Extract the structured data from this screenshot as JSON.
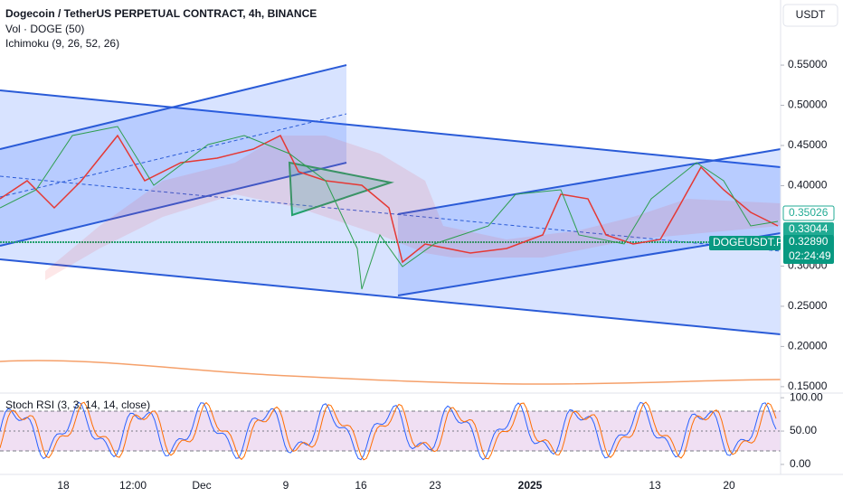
{
  "header": {
    "title": "Dogecoin / TetherUS PERPETUAL CONTRACT, 4h, BINANCE",
    "indicators": [
      "Vol · DOGE (50)",
      "Ichimoku (9, 26, 52, 26)"
    ]
  },
  "currency": "USDT",
  "price_axis": {
    "ylim": [
      0.142,
      0.631
    ],
    "yticks": [
      {
        "value": 0.55,
        "label": "0.55000"
      },
      {
        "value": 0.5,
        "label": "0.50000"
      },
      {
        "value": 0.45,
        "label": "0.45000"
      },
      {
        "value": 0.4,
        "label": "0.40000"
      },
      {
        "value": 0.3,
        "label": "0.30000"
      },
      {
        "value": 0.25,
        "label": "0.25000"
      },
      {
        "value": 0.2,
        "label": "0.20000"
      },
      {
        "value": 0.15,
        "label": "0.15000"
      }
    ]
  },
  "price_tags": {
    "high": "0.35026",
    "last": "0.33044",
    "symbol": "DOGEUSDT.P",
    "mark": "0.32890",
    "countdown": "02:24:49"
  },
  "stoch": {
    "title": "Stoch RSI (3, 3, 14, 14, close)",
    "ylim": [
      -15,
      107
    ],
    "yticks": [
      {
        "value": 100,
        "label": "100.00"
      },
      {
        "value": 50,
        "label": "50.00"
      },
      {
        "value": 0,
        "label": "0.00"
      }
    ]
  },
  "time_axis": [
    "18",
    "12:00",
    "Dec",
    "9",
    "16",
    "23",
    "2025",
    "13",
    "20"
  ]
}
